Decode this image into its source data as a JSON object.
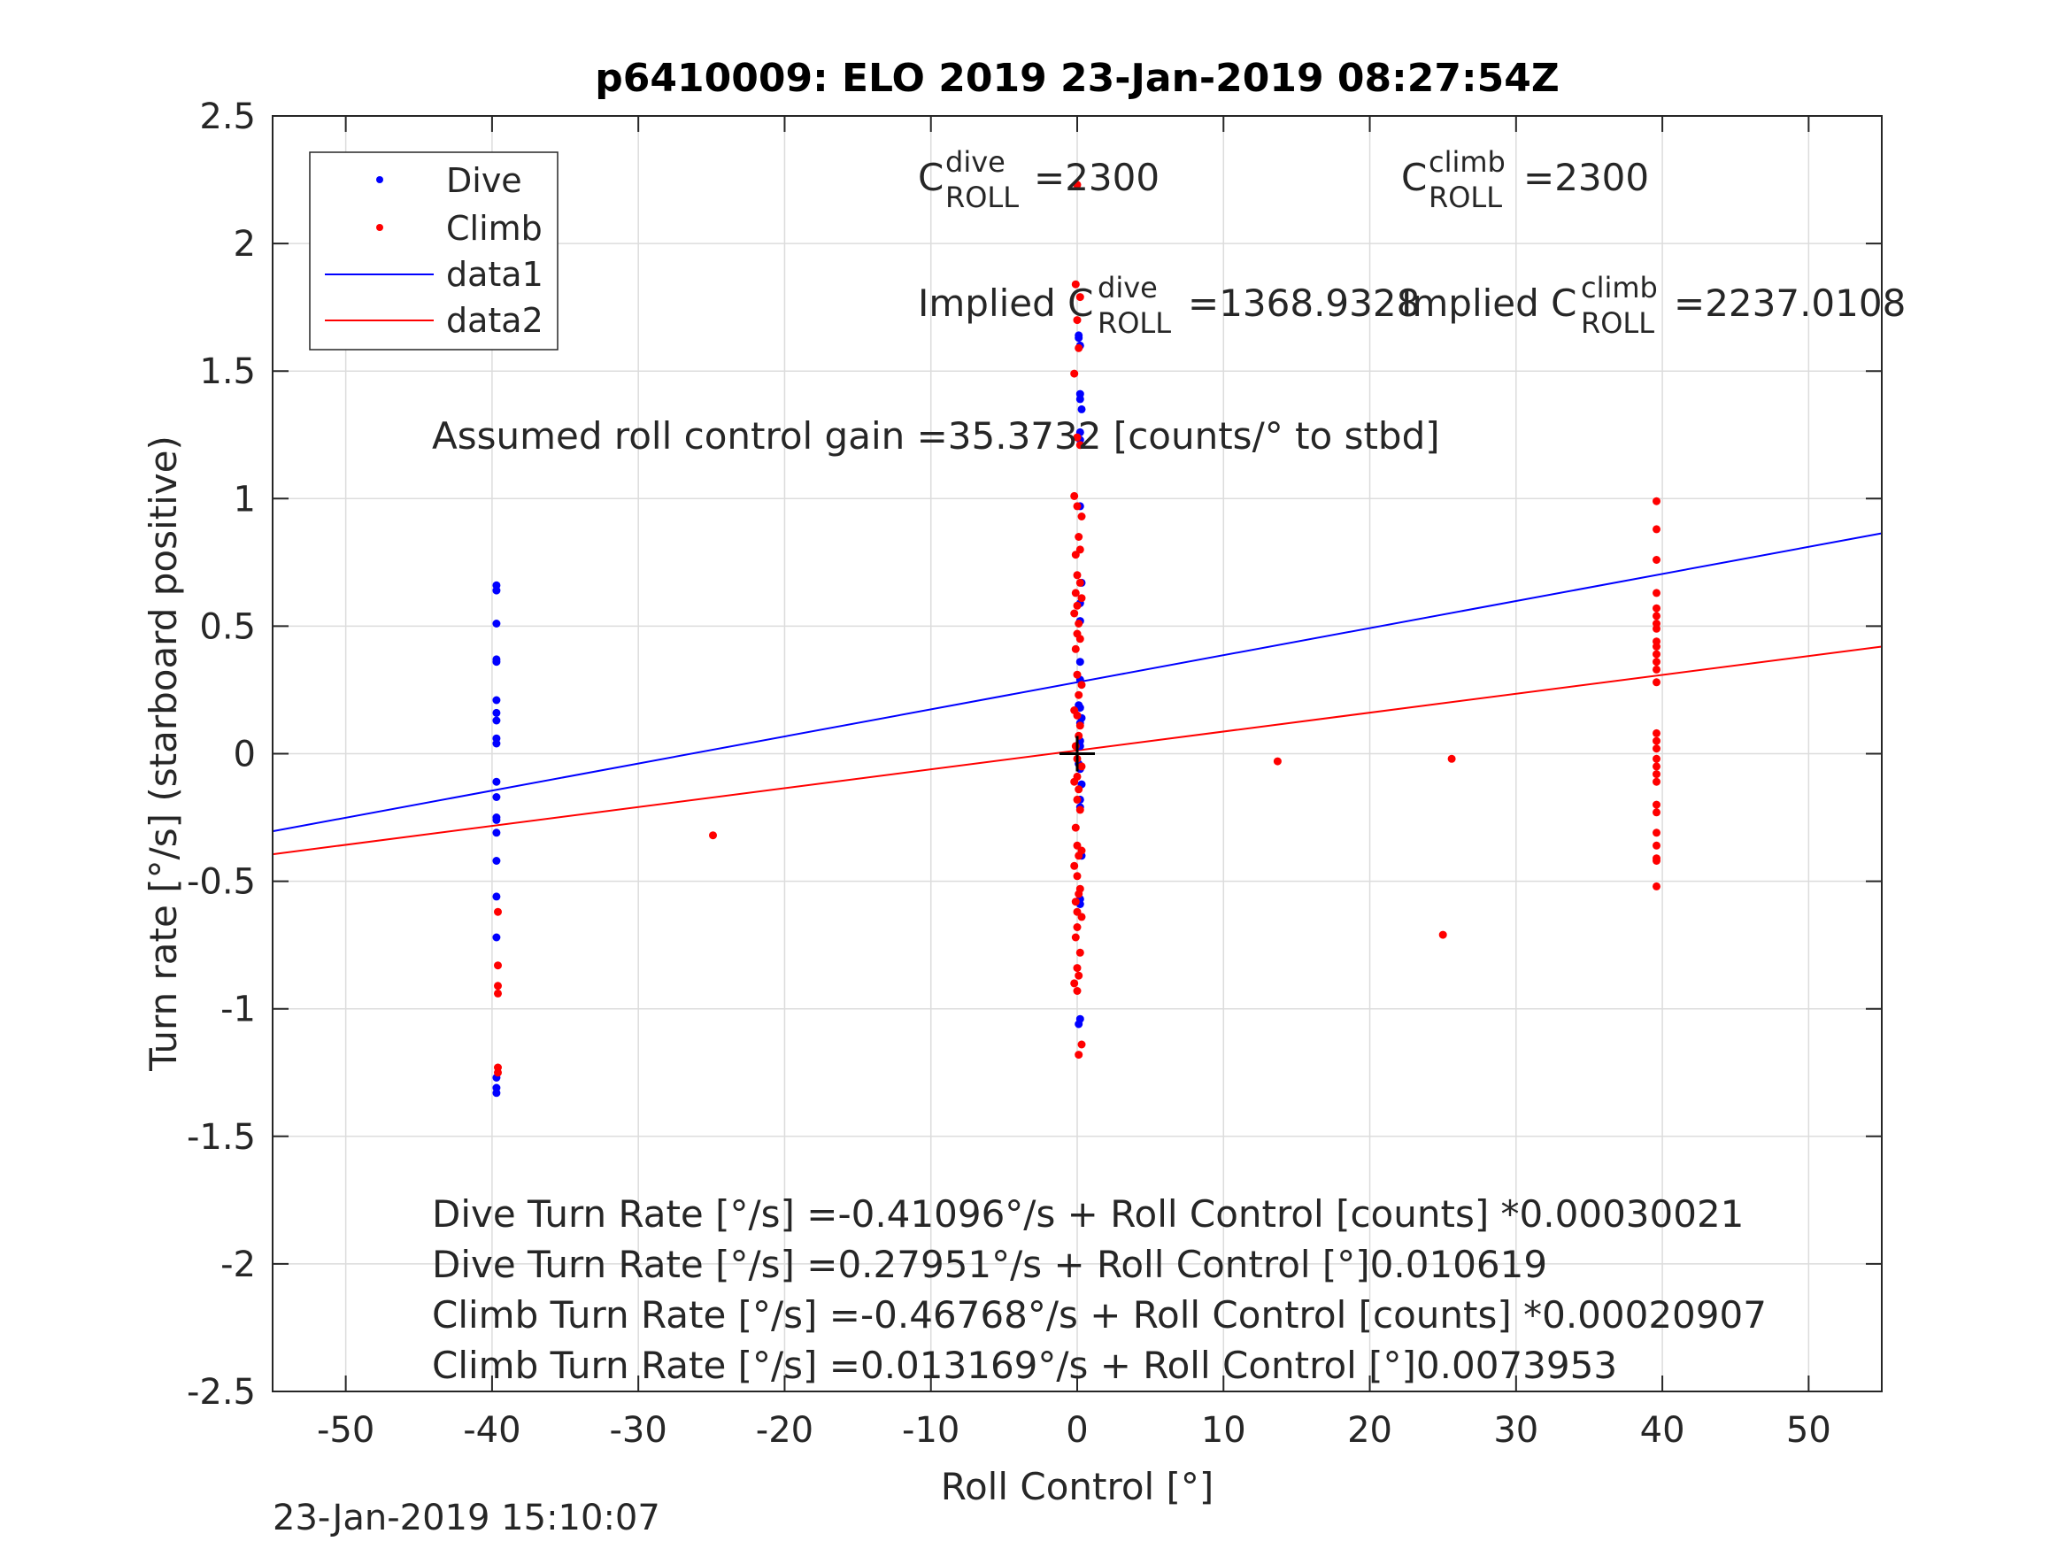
{
  "chart_data": {
    "type": "scatter",
    "title": "p6410009: ELO 2019 23-Jan-2019 08:27:54Z",
    "xlabel": "Roll Control [°]",
    "ylabel": "Turn rate [°/s] (starboard positive)",
    "xlim": [
      -55,
      55
    ],
    "ylim": [
      -2.5,
      2.5
    ],
    "grid": true,
    "xticks": [
      -50,
      -40,
      -30,
      -20,
      -10,
      0,
      10,
      20,
      30,
      40,
      50
    ],
    "xtick_labels": [
      "-50",
      "-40",
      "-30",
      "-20",
      "-10",
      "0",
      "10",
      "20",
      "30",
      "40",
      "50"
    ],
    "yticks": [
      -2.5,
      -2,
      -1.5,
      -1,
      -0.5,
      0,
      0.5,
      1,
      1.5,
      2,
      2.5
    ],
    "ytick_labels": [
      "-2.5",
      "-2",
      "-1.5",
      "-1",
      "-0.5",
      "0",
      "0.5",
      "1",
      "1.5",
      "2",
      "2.5"
    ],
    "legend_position": "top-left",
    "legend": [
      "Dive",
      "Climb",
      "data1",
      "data2"
    ],
    "series": [
      {
        "name": "Dive",
        "kind": "points",
        "color": "#0000ff",
        "x": [
          -39.7,
          -39.7,
          -39.7,
          -39.7,
          -39.7,
          -39.7,
          -39.7,
          -39.7,
          -39.7,
          -39.7,
          -39.7,
          -39.7,
          -39.7,
          -39.7,
          -39.7,
          -39.7,
          -39.7,
          -39.7,
          -39.7,
          -39.7,
          -39.7,
          0.1,
          0.1,
          0.2,
          0.2,
          0.2,
          0.3,
          0.2,
          0.2,
          0.2,
          0.3,
          0.2,
          0.2,
          0.2,
          0.2,
          0.1,
          0.2,
          0.3,
          0.2,
          0.2,
          0.2,
          0.1,
          0.2,
          0.3,
          0.2,
          0.2,
          0.3,
          0.2,
          0.2,
          0.2,
          0.1
        ],
        "y": [
          0.66,
          0.64,
          0.51,
          0.37,
          0.36,
          0.21,
          0.16,
          0.13,
          0.06,
          0.04,
          -0.11,
          -0.17,
          -0.25,
          -0.26,
          -0.31,
          -0.42,
          -0.56,
          -0.72,
          -1.27,
          -1.31,
          -1.33,
          1.64,
          1.63,
          1.6,
          1.41,
          1.39,
          1.35,
          1.26,
          1.23,
          0.97,
          0.67,
          0.59,
          0.52,
          0.36,
          0.29,
          0.19,
          0.18,
          0.14,
          0.12,
          0.05,
          0.03,
          -0.04,
          -0.06,
          -0.12,
          -0.18,
          -0.21,
          -0.4,
          -0.57,
          -0.59,
          -1.04,
          -1.06
        ]
      },
      {
        "name": "Climb",
        "kind": "points",
        "color": "#ff0000",
        "x": [
          -39.6,
          -39.6,
          -39.6,
          -39.6,
          -39.6,
          -39.6,
          -24.9,
          -0.2,
          0.0,
          0.3,
          0.1,
          0.2,
          -0.1,
          0.0,
          0.2,
          -0.1,
          0.3,
          0.0,
          -0.2,
          0.1,
          0.0,
          0.2,
          -0.1,
          0.0,
          0.3,
          0.1,
          -0.2,
          0.0,
          0.2,
          0.1,
          -0.1,
          0.0,
          0.3,
          0.0,
          -0.2,
          0.1,
          0.0,
          0.2,
          -0.1,
          0.0,
          0.3,
          0.1,
          -0.2,
          0.0,
          0.2,
          0.1,
          -0.1,
          0.0,
          0.3,
          0.0,
          -0.1,
          0.2,
          0.0,
          0.1,
          -0.2,
          0.0,
          0.3,
          0.1,
          0.0,
          -0.1,
          0.2,
          0.0,
          0.1,
          -0.2,
          0.0,
          0.2,
          13.7,
          25.0,
          25.6,
          39.6,
          39.6,
          39.6,
          39.6,
          39.6,
          39.6,
          39.6,
          39.6,
          39.6,
          39.6,
          39.6,
          39.6,
          39.6,
          39.6,
          39.6,
          39.6,
          39.6,
          39.6,
          39.6,
          39.6,
          39.6,
          39.6,
          39.6,
          39.6,
          39.6,
          39.6,
          39.6,
          39.6
        ],
        "y": [
          -0.62,
          -0.83,
          -0.91,
          -0.94,
          -1.23,
          -1.25,
          -0.32,
          1.01,
          0.97,
          0.93,
          0.85,
          0.8,
          0.78,
          0.7,
          0.67,
          0.63,
          0.61,
          0.58,
          0.55,
          0.51,
          0.47,
          0.45,
          0.41,
          0.31,
          0.27,
          0.23,
          0.17,
          0.15,
          0.11,
          0.07,
          0.03,
          -0.02,
          -0.05,
          -0.09,
          -0.11,
          -0.14,
          -0.18,
          -0.22,
          -0.29,
          -0.36,
          -0.38,
          -0.4,
          -0.44,
          -0.48,
          -0.53,
          -0.55,
          -0.58,
          -0.62,
          -0.64,
          -0.68,
          -0.72,
          -0.78,
          -0.84,
          -0.87,
          -0.9,
          -0.93,
          -1.14,
          -1.18,
          2.23,
          1.84,
          1.79,
          1.7,
          1.59,
          1.49,
          1.24,
          1.21,
          -0.03,
          -0.71,
          -0.02,
          0.99,
          0.88,
          0.76,
          0.63,
          0.57,
          0.54,
          0.51,
          0.49,
          0.44,
          0.42,
          0.39,
          0.36,
          0.33,
          0.28,
          0.08,
          0.05,
          0.02,
          -0.02,
          -0.05,
          -0.08,
          -0.11,
          -0.2,
          -0.23,
          -0.31,
          -0.36,
          -0.41,
          -0.42,
          -0.52
        ]
      },
      {
        "name": "data1",
        "kind": "line",
        "color": "#0000ff",
        "x": [
          -55,
          55
        ],
        "y": [
          -0.304,
          0.864
        ]
      },
      {
        "name": "data2",
        "kind": "line",
        "color": "#ff0000",
        "x": [
          -55,
          55
        ],
        "y": [
          -0.394,
          0.42
        ]
      }
    ],
    "annotations": [
      "Assumed roll control gain =35.3732 [counts/° to stbd]",
      "Dive Turn Rate [°/s] =-0.41096°/s + Roll Control [counts] *0.00030021",
      "Dive Turn Rate [°/s] =0.27951°/s + Roll Control [°]0.010619",
      "Climb Turn Rate [°/s] =-0.46768°/s + Roll Control [counts] *0.00020907",
      "Climb Turn Rate [°/s] =0.013169°/s + Roll Control [°]0.0073953"
    ],
    "coefficients": {
      "dive": {
        "C": "C",
        "sup": "dive",
        "sub": "ROLL",
        "value": "=2300"
      },
      "climb": {
        "C": "C",
        "sup": "climb",
        "sub": "ROLL",
        "value": "=2300"
      },
      "implied_dive": {
        "C": "Implied C",
        "sup": "dive",
        "sub": "ROLL",
        "value": "=1368.9328"
      },
      "implied_climb": {
        "C": "Implied C",
        "sup": "climb",
        "sub": "ROLL",
        "value": "=2237.0108"
      }
    },
    "origin_marker": {
      "x": 0,
      "y": 0
    },
    "timestamp": "23-Jan-2019 15:10:07"
  }
}
